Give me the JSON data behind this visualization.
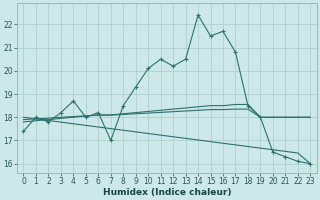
{
  "xlabel": "Humidex (Indice chaleur)",
  "bg_color": "#cce8e8",
  "grid_color": "#b0d0d0",
  "line_color": "#2d7070",
  "x": [
    0,
    1,
    2,
    3,
    4,
    5,
    6,
    7,
    8,
    9,
    10,
    11,
    12,
    13,
    14,
    15,
    16,
    17,
    18,
    19,
    20,
    21,
    22,
    23
  ],
  "y_main": [
    17.4,
    18.0,
    17.8,
    18.2,
    18.7,
    18.0,
    18.2,
    17.0,
    18.5,
    19.3,
    20.1,
    20.5,
    20.2,
    20.5,
    22.4,
    21.5,
    21.7,
    20.8,
    18.5,
    18.0,
    16.5,
    16.3,
    16.1,
    16.0
  ],
  "y_upper1": [
    17.8,
    17.85,
    17.9,
    17.95,
    18.0,
    18.05,
    18.1,
    18.1,
    18.15,
    18.2,
    18.25,
    18.3,
    18.35,
    18.4,
    18.45,
    18.5,
    18.5,
    18.55,
    18.55,
    18.0,
    18.0,
    18.0,
    18.0,
    18.0
  ],
  "y_upper2": [
    17.9,
    17.93,
    17.96,
    18.0,
    18.03,
    18.06,
    18.09,
    18.09,
    18.12,
    18.15,
    18.18,
    18.21,
    18.24,
    18.27,
    18.3,
    18.33,
    18.33,
    18.35,
    18.35,
    18.0,
    18.0,
    18.0,
    18.0,
    18.0
  ],
  "y_decline": [
    18.0,
    17.93,
    17.86,
    17.79,
    17.72,
    17.65,
    17.58,
    17.51,
    17.44,
    17.37,
    17.3,
    17.23,
    17.16,
    17.09,
    17.02,
    16.95,
    16.88,
    16.81,
    16.74,
    16.67,
    16.6,
    16.53,
    16.46,
    16.0
  ],
  "ylim": [
    15.6,
    22.9
  ],
  "yticks": [
    16,
    17,
    18,
    19,
    20,
    21,
    22
  ],
  "xlim": [
    -0.5,
    23.5
  ],
  "xticks": [
    0,
    1,
    2,
    3,
    4,
    5,
    6,
    7,
    8,
    9,
    10,
    11,
    12,
    13,
    14,
    15,
    16,
    17,
    18,
    19,
    20,
    21,
    22,
    23
  ],
  "label_fontsize": 6.5,
  "tick_fontsize": 5.5
}
